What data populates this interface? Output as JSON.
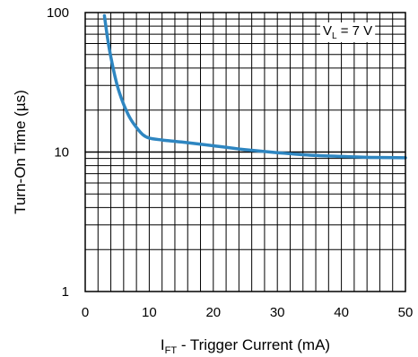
{
  "chart_data": {
    "type": "line",
    "title": "",
    "xlabel": {
      "main": "I",
      "sub": "FT",
      "rest": " - Trigger Current (mA)"
    },
    "ylabel": "Turn-On Time (µs)",
    "xlim": [
      0,
      50
    ],
    "ylim": [
      1,
      100
    ],
    "y_scale": "log",
    "grid": true,
    "x_ticks": [
      0,
      10,
      20,
      30,
      40,
      50
    ],
    "y_ticks": [
      {
        "value": 1,
        "label": "1"
      },
      {
        "value": 10,
        "label": "10"
      },
      {
        "value": 100,
        "label": "100"
      }
    ],
    "annotation": {
      "main": "V",
      "sub": "L",
      "rest": " = 7 V"
    },
    "series": [
      {
        "color": "#2e86c1",
        "x": [
          3,
          3.5,
          4,
          5,
          6,
          7,
          8,
          9,
          10,
          12,
          15,
          20,
          25,
          30,
          35,
          40,
          45,
          50
        ],
        "y": [
          95,
          65,
          48,
          30,
          22,
          17.5,
          15,
          13.3,
          12.6,
          12.2,
          11.8,
          11.1,
          10.4,
          9.9,
          9.5,
          9.3,
          9.15,
          9.1
        ]
      }
    ]
  }
}
